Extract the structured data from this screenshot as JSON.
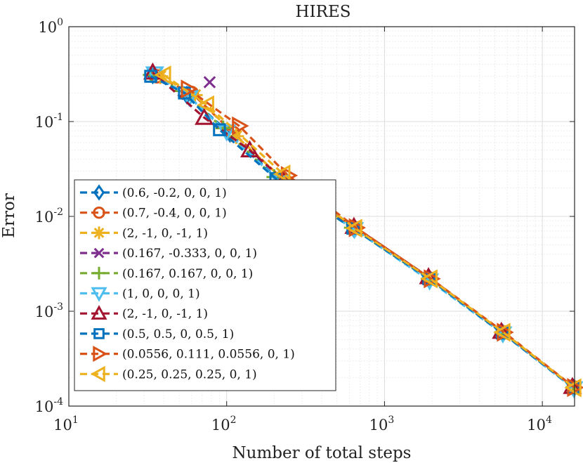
{
  "chart_data": {
    "type": "line",
    "title": "HIRES",
    "xlabel": "Number of total steps",
    "ylabel": "Error",
    "xscale": "log",
    "yscale": "log",
    "xlim": [
      10,
      16000
    ],
    "ylim": [
      0.0001,
      1
    ],
    "x_ticks": [
      {
        "base": "10",
        "exp": "1"
      },
      {
        "base": "10",
        "exp": "2"
      },
      {
        "base": "10",
        "exp": "3"
      },
      {
        "base": "10",
        "exp": "4"
      }
    ],
    "y_ticks": [
      {
        "base": "10",
        "exp": "0"
      },
      {
        "base": "10",
        "exp": "-1"
      },
      {
        "base": "10",
        "exp": "-2"
      },
      {
        "base": "10",
        "exp": "-3"
      },
      {
        "base": "10",
        "exp": "-4"
      }
    ],
    "grid": true,
    "legend_position": "bottom-left",
    "series": [
      {
        "name": "(0.6, -0.2, 0, 0, 1)",
        "color": "#0072BD",
        "marker": "diamond",
        "x": [
          34,
          56,
          105,
          215,
          640,
          1920,
          5600,
          15800
        ],
        "y": [
          0.31,
          0.19,
          0.075,
          0.024,
          0.0074,
          0.0022,
          0.00059,
          0.000155
        ]
      },
      {
        "name": "(0.7, -0.4, 0, 0, 1)",
        "color": "#D95319",
        "marker": "circle",
        "x": [
          36,
          60,
          110,
          225,
          650,
          1940,
          5650,
          15900
        ],
        "y": [
          0.3,
          0.2,
          0.076,
          0.025,
          0.0075,
          0.0022,
          0.0006,
          0.000157
        ]
      },
      {
        "name": "(2, -1, 0, -1, 1)",
        "color": "#EDB120",
        "marker": "asterisk",
        "x": [
          38,
          63,
          115,
          232,
          655,
          1950,
          5700,
          16000
        ],
        "y": [
          0.3,
          0.19,
          0.07,
          0.024,
          0.0074,
          0.0022,
          0.00059,
          0.000156
        ]
      },
      {
        "name": "(0.167, -0.333, 0, 0, 1)",
        "color": "#7E2F8E",
        "marker": "x",
        "x": [
          78
        ],
        "y": [
          0.26
        ]
      },
      {
        "name": "(0.167, 0.167, 0, 0, 1)",
        "color": "#77AC30",
        "marker": "plus",
        "x": [
          33,
          52,
          95,
          200,
          620,
          1900,
          5550,
          15700
        ],
        "y": [
          0.31,
          0.21,
          0.085,
          0.026,
          0.0076,
          0.0022,
          0.0006,
          0.000158
        ]
      },
      {
        "name": "(1, 0, 0, 0, 1)",
        "color": "#4DBEEE",
        "marker": "triangle-down",
        "x": [
          35,
          58,
          100,
          218,
          645,
          1930,
          5620,
          15850
        ],
        "y": [
          0.32,
          0.18,
          0.078,
          0.023,
          0.0073,
          0.0021,
          0.00058,
          0.000153
        ]
      },
      {
        "name": "(2, -1, 0, -1, 1)",
        "color": "#A2142F",
        "marker": "triangle-up",
        "x": [
          34,
          72,
          140,
          230,
          640,
          1900,
          5500,
          15500
        ],
        "y": [
          0.33,
          0.11,
          0.05,
          0.024,
          0.0078,
          0.0023,
          0.00061,
          0.00016
        ]
      },
      {
        "name": "(0.5, 0.5, 0, 0.5, 1)",
        "color": "#0072BD",
        "marker": "square",
        "x": [
          33,
          54,
          90,
          205,
          630,
          1910,
          5580,
          15750
        ],
        "y": [
          0.3,
          0.2,
          0.082,
          0.025,
          0.0075,
          0.0022,
          0.00059,
          0.000156
        ]
      },
      {
        "name": "(0.0556, 0.111, 0.0556, 0, 1)",
        "color": "#D95319",
        "marker": "triangle-right",
        "x": [
          57,
          120,
          245,
          660,
          1970,
          5720,
          15950
        ],
        "y": [
          0.22,
          0.09,
          0.027,
          0.0076,
          0.0022,
          0.0006,
          0.000157
        ]
      },
      {
        "name": "(0.25, 0.25, 0.25, 0, 1)",
        "color": "#EDB120",
        "marker": "triangle-left",
        "x": [
          40,
          75,
          228,
          650,
          1950,
          5650,
          15900
        ],
        "y": [
          0.31,
          0.15,
          0.028,
          0.0075,
          0.0022,
          0.0006,
          0.000156
        ]
      }
    ]
  }
}
